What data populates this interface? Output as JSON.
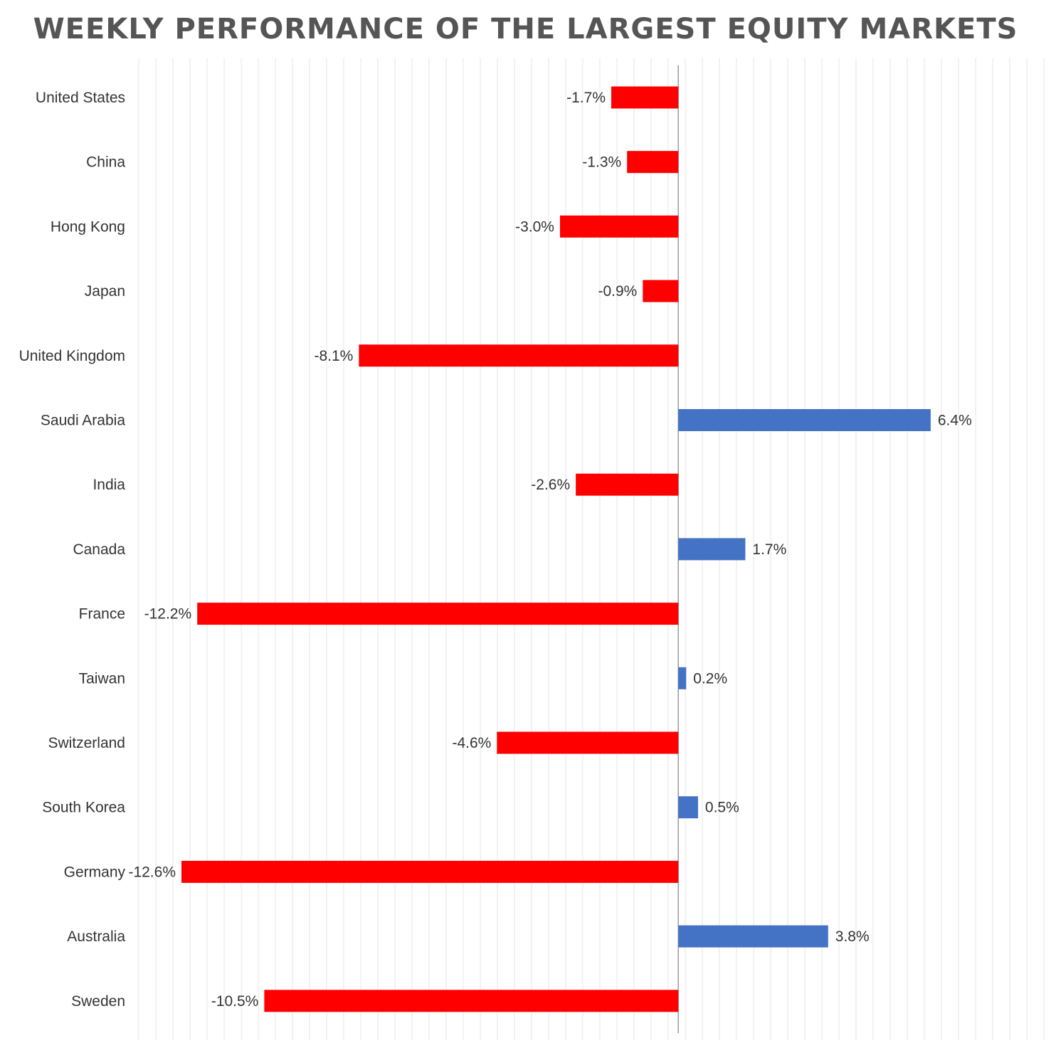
{
  "chart_data": {
    "type": "bar",
    "orientation": "horizontal",
    "title": "WEEKLY PERFORMANCE OF THE LARGEST EQUITY MARKETS",
    "categories": [
      "United States",
      "China",
      "Hong Kong",
      "Japan",
      "United Kingdom",
      "Saudi Arabia",
      "India",
      "Canada",
      "France",
      "Taiwan",
      "Switzerland",
      "South Korea",
      "Germany",
      "Australia",
      "Sweden"
    ],
    "values": [
      -1.7,
      -1.3,
      -3.0,
      -0.9,
      -8.1,
      6.4,
      -2.6,
      1.7,
      -12.2,
      0.2,
      -4.6,
      0.5,
      -12.6,
      3.8,
      -10.5
    ],
    "value_labels": [
      "-1.7%",
      "-1.3%",
      "-3.0%",
      "-0.9%",
      "-8.1%",
      "6.4%",
      "-2.6%",
      "1.7%",
      "-12.2%",
      "0.2%",
      "-4.6%",
      "0.5%",
      "-12.6%",
      "3.8%",
      "-10.5%"
    ],
    "xlim": [
      -12.6,
      7.9
    ],
    "grid": true,
    "colors": {
      "negative": "#ff0000",
      "positive": "#4472c4",
      "grid": "#e6e6e6",
      "axis": "#999999"
    }
  }
}
